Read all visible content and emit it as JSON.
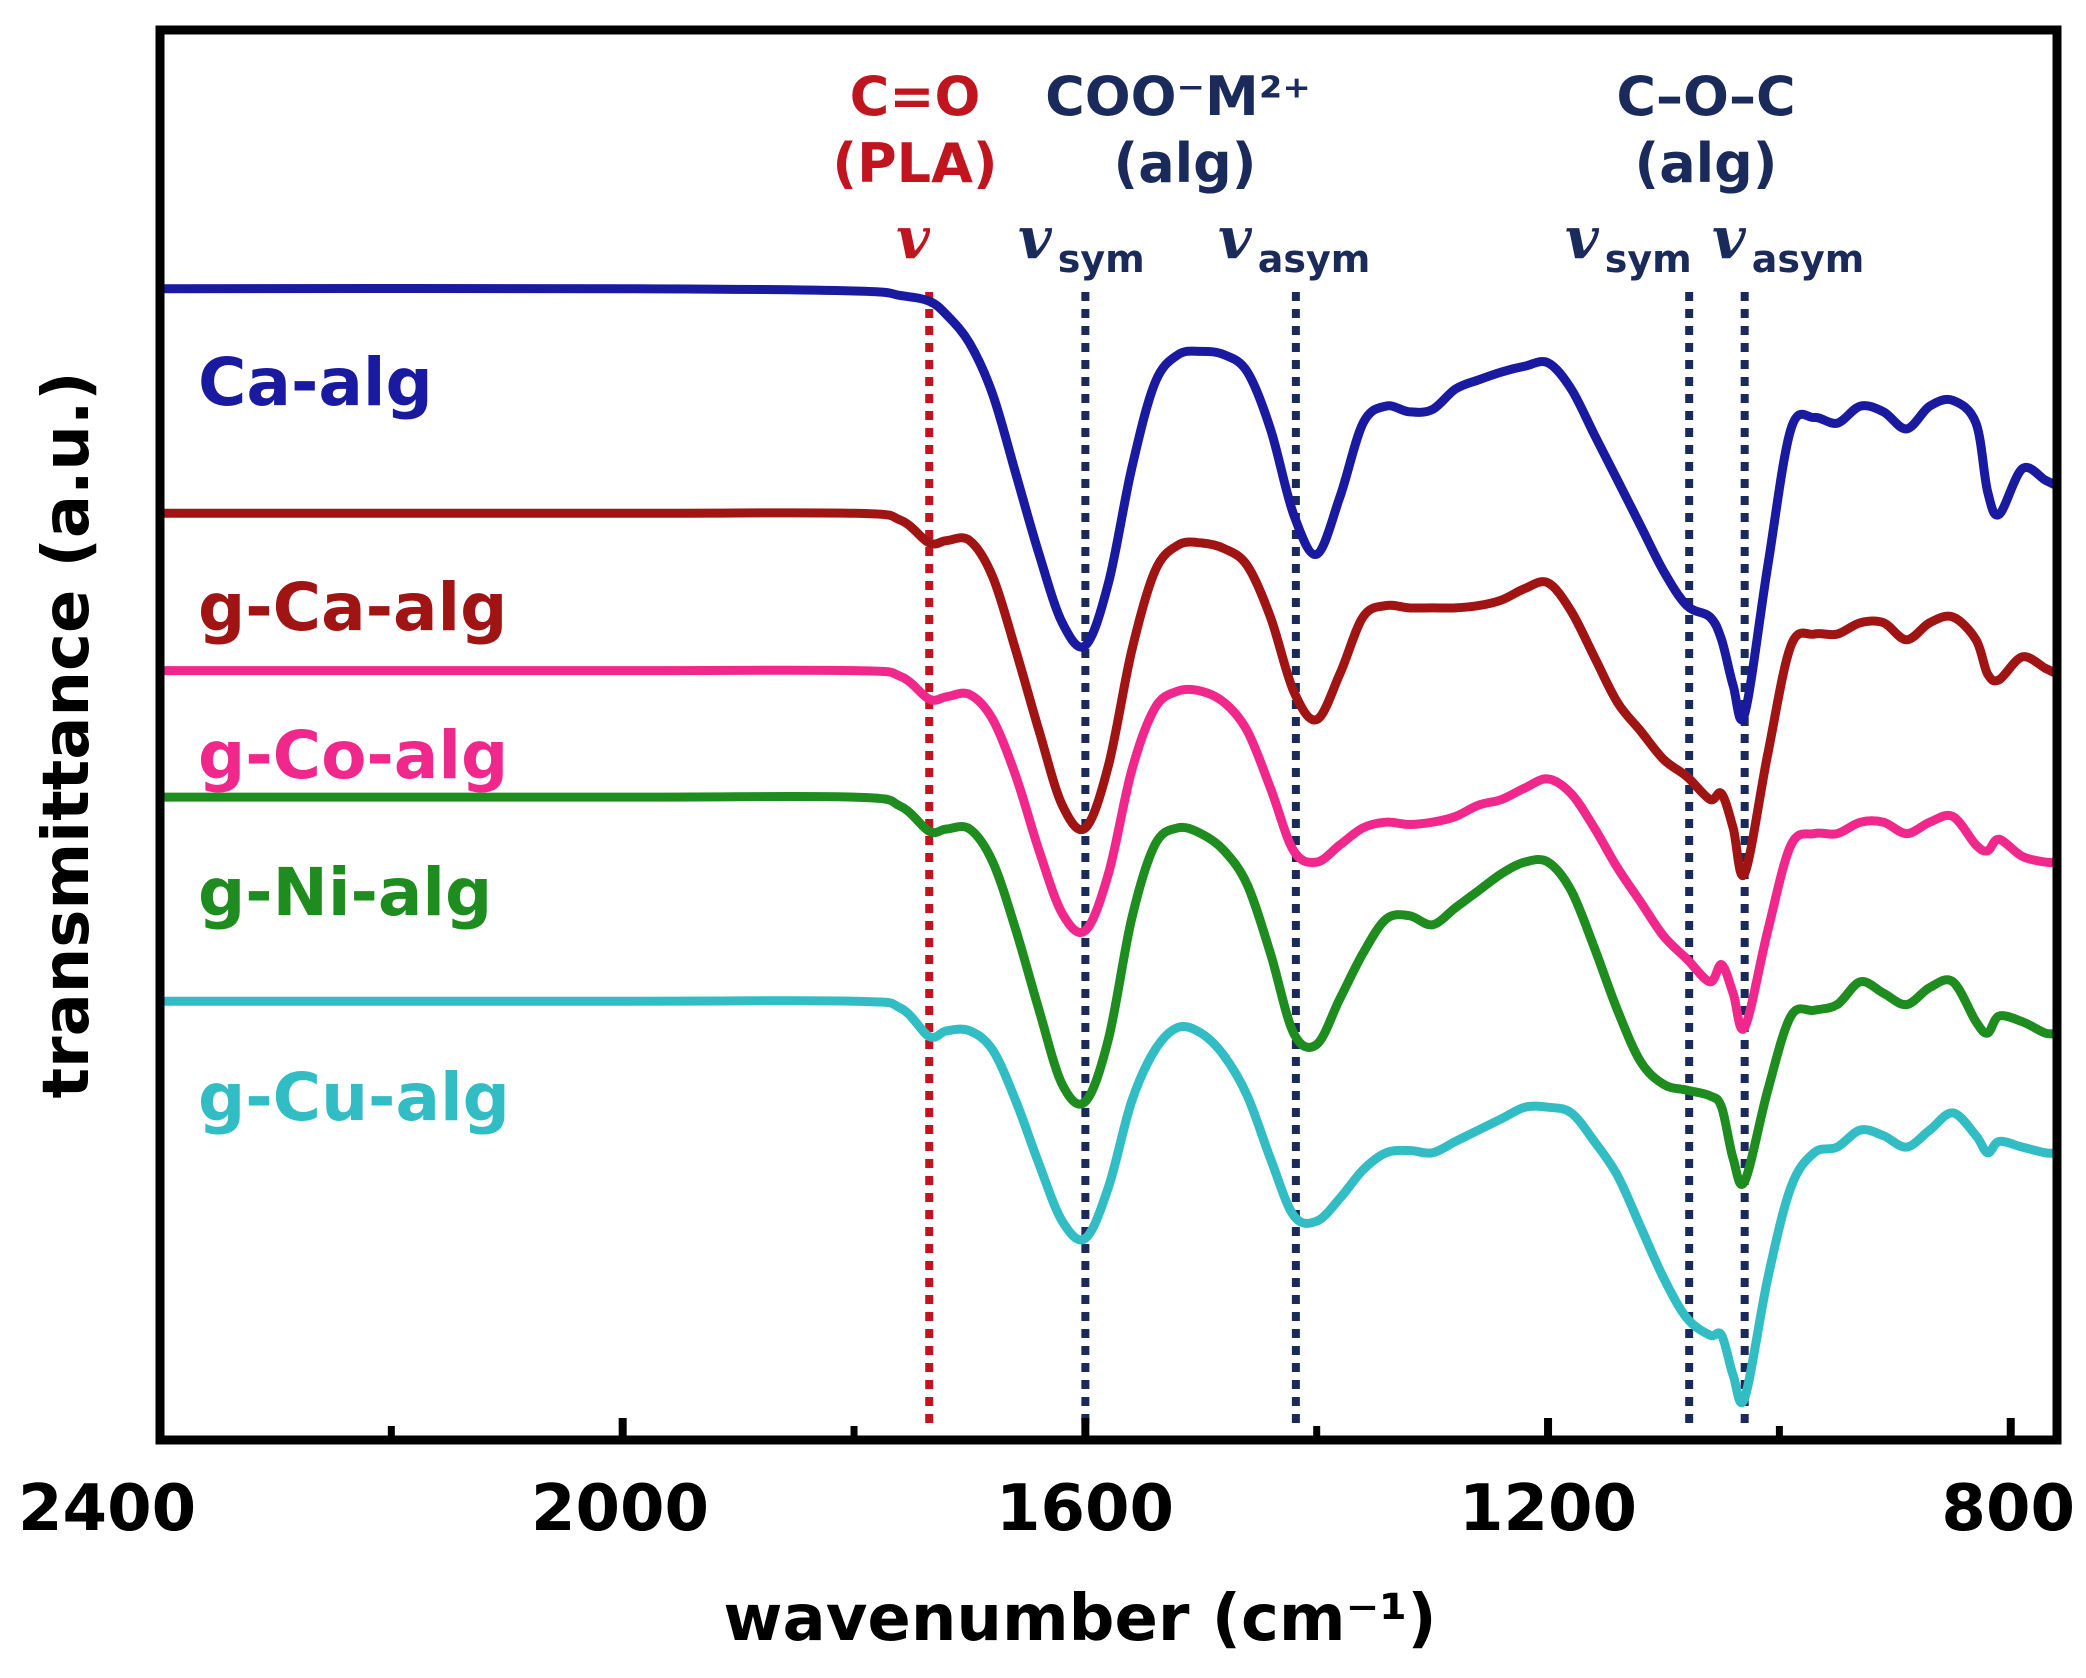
{
  "chart_data": {
    "type": "line",
    "title": "",
    "xlabel": "wavenumber (cm⁻¹)",
    "ylabel": "transmittance (a.u.)",
    "xlim": [
      2400,
      760
    ],
    "ylim": [
      0,
      100
    ],
    "x_ticks": [
      2400,
      2000,
      1600,
      1200,
      800
    ],
    "x_tick_labels": [
      "2400",
      "2000",
      "1600",
      "1200",
      "800"
    ],
    "grid": false,
    "legend": "inline labels at left",
    "colors": {
      "Ca-alg": "#1a1aa0",
      "g-Ca-alg": "#a01414",
      "g-Co-alg": "#f0288c",
      "g-Ni-alg": "#1e8c1e",
      "g-Cu-alg": "#32bcc4",
      "pla_line": "#c0141e",
      "alg_line": "#1a2a5a"
    },
    "x": [
      2400,
      2000,
      1800,
      1760,
      1735,
      1720,
      1700,
      1680,
      1660,
      1640,
      1620,
      1600,
      1580,
      1560,
      1540,
      1520,
      1500,
      1480,
      1460,
      1440,
      1420,
      1400,
      1380,
      1360,
      1340,
      1320,
      1300,
      1280,
      1260,
      1240,
      1220,
      1200,
      1180,
      1160,
      1140,
      1120,
      1100,
      1080,
      1060,
      1050,
      1040,
      1030,
      1010,
      990,
      970,
      950,
      930,
      910,
      890,
      870,
      850,
      830,
      820,
      810,
      790,
      770,
      760
    ],
    "series": [
      {
        "name": "Ca-alg",
        "values": [
          98.8,
          98.8,
          98.6,
          98.2,
          97.7,
          96.5,
          94.0,
          89.5,
          82.5,
          75.5,
          69.5,
          67.5,
          73.0,
          83.0,
          90.5,
          93.0,
          93.3,
          93.0,
          91.5,
          86.5,
          79.0,
          75.5,
          80.5,
          87.0,
          88.5,
          88.0,
          88.2,
          90.0,
          90.8,
          91.5,
          92.0,
          92.3,
          90.0,
          86.0,
          82.0,
          78.0,
          74.0,
          71.0,
          70.0,
          68.0,
          64.0,
          61.5,
          74.5,
          86.5,
          87.5,
          87.0,
          88.5,
          88.0,
          86.5,
          88.5,
          89.0,
          87.0,
          81.0,
          79.0,
          83.0,
          82.0,
          81.5
        ]
      },
      {
        "name": "g-Ca-alg",
        "values": [
          79.1,
          79.1,
          79.1,
          78.5,
          76.5,
          76.7,
          76.7,
          73.5,
          67.0,
          60.0,
          53.5,
          51.5,
          57.0,
          67.0,
          74.0,
          76.3,
          76.5,
          76.0,
          74.5,
          70.0,
          63.5,
          61.0,
          65.0,
          70.0,
          71.0,
          70.8,
          70.8,
          70.8,
          71.0,
          71.5,
          72.5,
          73.0,
          70.5,
          66.5,
          62.5,
          60.0,
          57.5,
          56.0,
          54.0,
          54.5,
          51.5,
          47.5,
          58.0,
          67.5,
          68.5,
          68.5,
          69.5,
          69.5,
          68.0,
          69.5,
          70.0,
          68.0,
          65.0,
          64.5,
          66.5,
          65.5,
          65.0
        ]
      },
      {
        "name": "g-Co-alg",
        "values": [
          65.3,
          65.3,
          65.3,
          64.8,
          62.8,
          63.0,
          63.2,
          61.0,
          56.0,
          49.5,
          44.0,
          42.5,
          47.5,
          56.5,
          62.0,
          63.5,
          63.5,
          62.5,
          60.0,
          55.0,
          49.5,
          48.5,
          50.0,
          51.5,
          52.0,
          51.8,
          52.0,
          52.5,
          53.5,
          54.0,
          55.0,
          55.8,
          54.5,
          51.5,
          48.0,
          45.0,
          42.0,
          40.0,
          38.0,
          39.5,
          37.0,
          34.0,
          42.5,
          50.0,
          51.0,
          51.0,
          52.0,
          52.0,
          51.0,
          52.0,
          52.5,
          50.0,
          49.5,
          50.5,
          49.0,
          48.5,
          48.5
        ]
      },
      {
        "name": "g-Ni-alg",
        "values": [
          54.2,
          54.2,
          54.2,
          53.4,
          51.2,
          51.4,
          51.4,
          48.5,
          42.5,
          35.5,
          29.0,
          27.5,
          33.0,
          43.5,
          50.0,
          51.5,
          51.0,
          49.5,
          46.5,
          40.5,
          33.5,
          32.5,
          36.5,
          40.5,
          43.5,
          43.8,
          43.0,
          44.5,
          46.0,
          47.5,
          48.5,
          48.5,
          46.0,
          41.0,
          35.5,
          31.0,
          29.0,
          28.5,
          28.0,
          27.0,
          22.5,
          20.5,
          28.5,
          35.0,
          35.5,
          36.0,
          38.0,
          37.0,
          36.0,
          37.5,
          38.0,
          34.5,
          33.5,
          35.0,
          34.5,
          33.5,
          33.5
        ]
      },
      {
        "name": "g-Cu-alg",
        "values": [
          36.3,
          36.3,
          36.3,
          35.7,
          33.2,
          33.7,
          33.7,
          32.0,
          27.5,
          22.0,
          17.0,
          15.5,
          20.0,
          27.5,
          32.0,
          34.0,
          33.5,
          31.5,
          28.0,
          22.5,
          17.5,
          17.0,
          19.0,
          21.5,
          23.0,
          23.2,
          23.0,
          24.0,
          25.0,
          26.0,
          27.0,
          27.0,
          26.5,
          24.0,
          21.0,
          16.5,
          12.0,
          8.5,
          7.0,
          7.0,
          3.5,
          1.5,
          12.0,
          20.0,
          23.0,
          23.5,
          25.0,
          24.5,
          23.5,
          25.0,
          26.5,
          24.5,
          23.0,
          24.0,
          23.5,
          23.0,
          23.0
        ]
      }
    ],
    "reference_lines": [
      {
        "x": 1735,
        "group": "PLA"
      },
      {
        "x": 1600,
        "group": "alg"
      },
      {
        "x": 1418,
        "group": "alg"
      },
      {
        "x": 1078,
        "group": "alg"
      },
      {
        "x": 1030,
        "group": "alg"
      }
    ],
    "annotations": {
      "cpla_line1": "C=O",
      "cpla_line2": "(PLA)",
      "cpla_nu": "v",
      "coo_line1": "COO⁻M²⁺",
      "coo_line2": "(alg)",
      "coc_line1": "C–O–C",
      "coc_line2": "(alg)",
      "nu": "v",
      "sym": "sym",
      "asym": "asym"
    }
  }
}
